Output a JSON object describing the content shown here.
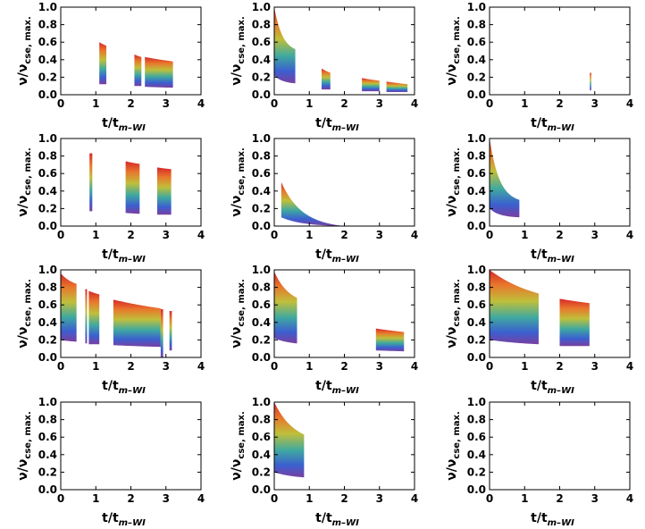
{
  "figure": {
    "xlabel": {
      "main": "t/t",
      "sub": "m–WI"
    },
    "ylabel": {
      "main": "ν/ν",
      "sub": "cse, max."
    }
  },
  "colors": {
    "sequence": [
      "#d62728",
      "#e8762c",
      "#bfbf3a",
      "#3fa9a0",
      "#3b5fd0",
      "#7a3fa0"
    ]
  },
  "chart_data": [
    {
      "panel": 1,
      "type": "area",
      "xlim": [
        0,
        4
      ],
      "ylim": [
        0,
        1
      ],
      "xticks": [
        "0",
        "1",
        "2",
        "3",
        "4"
      ],
      "yticks": [
        "0.0",
        "0.2",
        "0.4",
        "0.6",
        "0.8",
        "1.0"
      ],
      "bands": [
        {
          "x0": 1.1,
          "x1": 1.3,
          "top0": 0.6,
          "top1": 0.56,
          "bot0": 0.12,
          "bot1": 0.12,
          "decay": 0.5
        },
        {
          "x0": 2.1,
          "x1": 2.3,
          "top0": 0.46,
          "top1": 0.43,
          "bot0": 0.1,
          "bot1": 0.1,
          "decay": 0.5
        },
        {
          "x0": 2.4,
          "x1": 3.2,
          "top0": 0.43,
          "top1": 0.38,
          "bot0": 0.09,
          "bot1": 0.08,
          "decay": 0.3
        }
      ]
    },
    {
      "panel": 2,
      "type": "area",
      "xlim": [
        0,
        4
      ],
      "ylim": [
        0,
        1
      ],
      "xticks": [
        "0",
        "1",
        "2",
        "3",
        "4"
      ],
      "yticks": [
        "0.0",
        "0.2",
        "0.4",
        "0.6",
        "0.8",
        "1.0"
      ],
      "bands": [
        {
          "x0": 0.0,
          "x1": 0.6,
          "top0": 1.0,
          "top1": 0.52,
          "bot0": 0.22,
          "bot1": 0.13,
          "decay": 2.5
        },
        {
          "x0": 1.35,
          "x1": 1.6,
          "top0": 0.3,
          "top1": 0.25,
          "bot0": 0.06,
          "bot1": 0.06,
          "decay": 0.5
        },
        {
          "x0": 2.5,
          "x1": 3.0,
          "top0": 0.19,
          "top1": 0.16,
          "bot0": 0.04,
          "bot1": 0.04,
          "decay": 0.3
        },
        {
          "x0": 3.2,
          "x1": 3.8,
          "top0": 0.15,
          "top1": 0.12,
          "bot0": 0.03,
          "bot1": 0.03,
          "decay": 0.3
        }
      ]
    },
    {
      "panel": 3,
      "type": "area",
      "xlim": [
        0,
        4
      ],
      "ylim": [
        0,
        1
      ],
      "xticks": [
        "0",
        "1",
        "2",
        "3",
        "4"
      ],
      "yticks": [
        "0.0",
        "0.2",
        "0.4",
        "0.6",
        "0.8",
        "1.0"
      ],
      "bands": [
        {
          "x0": 2.86,
          "x1": 2.9,
          "top0": 0.25,
          "top1": 0.25,
          "bot0": 0.05,
          "bot1": 0.05,
          "decay": 0.5
        }
      ]
    },
    {
      "panel": 4,
      "type": "area",
      "xlim": [
        0,
        4
      ],
      "ylim": [
        0,
        1
      ],
      "xticks": [
        "0",
        "1",
        "2",
        "3",
        "4"
      ],
      "yticks": [
        "0.0",
        "0.2",
        "0.4",
        "0.6",
        "0.8",
        "1.0"
      ],
      "bands": [
        {
          "x0": 0.82,
          "x1": 0.9,
          "top0": 0.83,
          "top1": 0.83,
          "bot0": 0.17,
          "bot1": 0.17,
          "decay": 0.5
        },
        {
          "x0": 1.85,
          "x1": 2.25,
          "top0": 0.74,
          "top1": 0.71,
          "bot0": 0.15,
          "bot1": 0.14,
          "decay": 0.5
        },
        {
          "x0": 2.75,
          "x1": 3.15,
          "top0": 0.67,
          "top1": 0.65,
          "bot0": 0.13,
          "bot1": 0.13,
          "decay": 0.5
        }
      ]
    },
    {
      "panel": 5,
      "type": "area",
      "xlim": [
        0,
        4
      ],
      "ylim": [
        0,
        1
      ],
      "xticks": [
        "0",
        "1",
        "2",
        "3",
        "4"
      ],
      "yticks": [
        "0.0",
        "0.2",
        "0.4",
        "0.6",
        "0.8",
        "1.0"
      ],
      "bands": [
        {
          "x0": 0.2,
          "x1": 2.0,
          "top0": 0.5,
          "top1": 0.0,
          "bot0": 0.1,
          "bot1": 0.0,
          "decay": 3.0
        }
      ]
    },
    {
      "panel": 6,
      "type": "area",
      "xlim": [
        0,
        4
      ],
      "ylim": [
        0,
        1
      ],
      "xticks": [
        "0",
        "1",
        "2",
        "3",
        "4"
      ],
      "yticks": [
        "0.0",
        "0.2",
        "0.4",
        "0.6",
        "0.8",
        "1.0"
      ],
      "bands": [
        {
          "x0": 0.0,
          "x1": 0.85,
          "top0": 1.0,
          "top1": 0.3,
          "bot0": 0.2,
          "bot1": 0.1,
          "decay": 3.0
        }
      ]
    },
    {
      "panel": 7,
      "type": "area",
      "xlim": [
        0,
        4
      ],
      "ylim": [
        0,
        1
      ],
      "xticks": [
        "0",
        "1",
        "2",
        "3",
        "4"
      ],
      "yticks": [
        "0.0",
        "0.2",
        "0.4",
        "0.6",
        "0.8",
        "1.0"
      ],
      "bands": [
        {
          "x0": 0.0,
          "x1": 0.45,
          "top0": 0.96,
          "top1": 0.84,
          "bot0": 0.2,
          "bot1": 0.18,
          "decay": 1.2
        },
        {
          "x0": 0.7,
          "x1": 0.75,
          "top0": 0.78,
          "top1": 0.78,
          "bot0": 0.16,
          "bot1": 0.16,
          "decay": 0.5
        },
        {
          "x0": 0.8,
          "x1": 1.1,
          "top0": 0.76,
          "top1": 0.72,
          "bot0": 0.15,
          "bot1": 0.15,
          "decay": 0.5
        },
        {
          "x0": 1.5,
          "x1": 2.85,
          "top0": 0.66,
          "top1": 0.56,
          "bot0": 0.14,
          "bot1": 0.12,
          "decay": 0.5
        },
        {
          "x0": 2.85,
          "x1": 2.92,
          "top0": 0.55,
          "top1": 0.55,
          "bot0": 0.0,
          "bot1": 0.0,
          "decay": 0.5
        },
        {
          "x0": 3.1,
          "x1": 3.17,
          "top0": 0.53,
          "top1": 0.53,
          "bot0": 0.08,
          "bot1": 0.08,
          "decay": 0.5
        }
      ]
    },
    {
      "panel": 8,
      "type": "area",
      "xlim": [
        0,
        4
      ],
      "ylim": [
        0,
        1
      ],
      "xticks": [
        "0",
        "1",
        "2",
        "3",
        "4"
      ],
      "yticks": [
        "0.0",
        "0.2",
        "0.4",
        "0.6",
        "0.8",
        "1.0"
      ],
      "bands": [
        {
          "x0": 0.0,
          "x1": 0.65,
          "top0": 0.98,
          "top1": 0.68,
          "bot0": 0.22,
          "bot1": 0.16,
          "decay": 1.5
        },
        {
          "x0": 2.9,
          "x1": 3.7,
          "top0": 0.33,
          "top1": 0.29,
          "bot0": 0.08,
          "bot1": 0.07,
          "decay": 0.3
        }
      ]
    },
    {
      "panel": 9,
      "type": "area",
      "xlim": [
        0,
        4
      ],
      "ylim": [
        0,
        1
      ],
      "xticks": [
        "0",
        "1",
        "2",
        "3",
        "4"
      ],
      "yticks": [
        "0.0",
        "0.2",
        "0.4",
        "0.6",
        "0.8",
        "1.0"
      ],
      "bands": [
        {
          "x0": 0.0,
          "x1": 1.4,
          "top0": 1.0,
          "top1": 0.73,
          "bot0": 0.2,
          "bot1": 0.15,
          "decay": 1.0
        },
        {
          "x0": 2.0,
          "x1": 2.85,
          "top0": 0.67,
          "top1": 0.62,
          "bot0": 0.13,
          "bot1": 0.13,
          "decay": 0.3
        }
      ]
    },
    {
      "panel": 10,
      "type": "area",
      "xlim": [
        0,
        4
      ],
      "ylim": [
        0,
        1
      ],
      "xticks": [
        "0",
        "1",
        "2",
        "3",
        "4"
      ],
      "yticks": [
        "0.0",
        "0.2",
        "0.4",
        "0.6",
        "0.8",
        "1.0"
      ],
      "bands": []
    },
    {
      "panel": 11,
      "type": "area",
      "xlim": [
        0,
        4
      ],
      "ylim": [
        0,
        1
      ],
      "xticks": [
        "0",
        "1",
        "2",
        "3",
        "4"
      ],
      "yticks": [
        "0.0",
        "0.2",
        "0.4",
        "0.6",
        "0.8",
        "1.0"
      ],
      "bands": [
        {
          "x0": 0.0,
          "x1": 0.85,
          "top0": 1.0,
          "top1": 0.63,
          "bot0": 0.2,
          "bot1": 0.14,
          "decay": 1.5
        }
      ]
    },
    {
      "panel": 12,
      "type": "area",
      "xlim": [
        0,
        4
      ],
      "ylim": [
        0,
        1
      ],
      "xticks": [
        "0",
        "1",
        "2",
        "3",
        "4"
      ],
      "yticks": [
        "0.0",
        "0.2",
        "0.4",
        "0.6",
        "0.8",
        "1.0"
      ],
      "bands": []
    }
  ]
}
